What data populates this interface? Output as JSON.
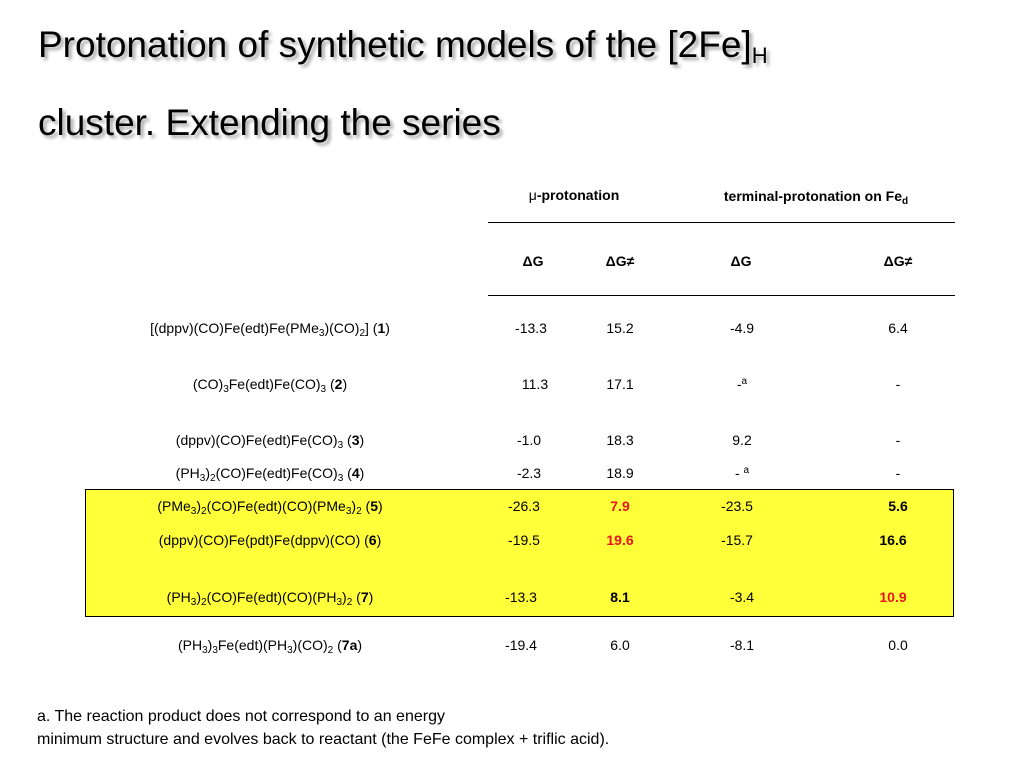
{
  "slide": {
    "title_line1": "Protonation of synthetic models of the [2Fe]",
    "title_sub": "H",
    "title_line2": "cluster. Extending the series"
  },
  "table": {
    "group_headers": {
      "mu_symbol": "μ",
      "mu_text": "-protonation",
      "terminal_text": "terminal-protonation on Fe",
      "terminal_sub": "d"
    },
    "sub_headers": [
      "ΔG",
      "ΔG≠",
      "ΔG",
      "ΔG≠"
    ],
    "rows": [
      {
        "compound": [
          {
            "t": "[(dppv)(CO)Fe(edt)Fe(PMe"
          },
          {
            "t": "3",
            "sub": true
          },
          {
            "t": ")(CO)"
          },
          {
            "t": "2",
            "sub": true
          },
          {
            "t": "]  ("
          },
          {
            "t": "1",
            "b": true
          },
          {
            "t": ")"
          }
        ],
        "values": [
          {
            "t": "-13.3"
          },
          {
            "t": "15.2"
          },
          {
            "t": "-4.9"
          },
          {
            "t": "6.4"
          }
        ]
      },
      {
        "compound": [
          {
            "t": "(CO)"
          },
          {
            "t": "3",
            "sub": true
          },
          {
            "t": "Fe(edt)Fe(CO)"
          },
          {
            "t": "3",
            "sub": true
          },
          {
            "t": " ("
          },
          {
            "t": "2",
            "b": true
          },
          {
            "t": ")"
          }
        ],
        "values": [
          {
            "t": "11.3"
          },
          {
            "t": "17.1"
          },
          {
            "t": "-"
          },
          {
            "t": "-"
          }
        ],
        "note": "a"
      },
      {
        "compound": [
          {
            "t": "(dppv)(CO)Fe(edt)Fe(CO)"
          },
          {
            "t": "3",
            "sub": true
          },
          {
            "t": " ("
          },
          {
            "t": "3",
            "b": true
          },
          {
            "t": ")"
          }
        ],
        "values": [
          {
            "t": "-1.0"
          },
          {
            "t": "18.3"
          },
          {
            "t": "9.2"
          },
          {
            "t": "-"
          }
        ]
      },
      {
        "compound": [
          {
            "t": "(PH"
          },
          {
            "t": "3",
            "sub": true
          },
          {
            "t": ")"
          },
          {
            "t": "2",
            "sub": true
          },
          {
            "t": "(CO)Fe(edt)Fe(CO)"
          },
          {
            "t": "3",
            "sub": true
          },
          {
            "t": "  ("
          },
          {
            "t": "4",
            "b": true
          },
          {
            "t": ")"
          }
        ],
        "values": [
          {
            "t": "-2.3"
          },
          {
            "t": "18.9"
          },
          {
            "t": "- "
          },
          {
            "t": "-"
          }
        ],
        "note": "a"
      },
      {
        "compound": [
          {
            "t": "(PMe"
          },
          {
            "t": "3",
            "sub": true
          },
          {
            "t": ")"
          },
          {
            "t": "2",
            "sub": true
          },
          {
            "t": "(CO)Fe(edt)(CO)(PMe"
          },
          {
            "t": "3",
            "sub": true
          },
          {
            "t": ")"
          },
          {
            "t": "2",
            "sub": true
          },
          {
            "t": " ("
          },
          {
            "t": "5",
            "b": true
          },
          {
            "t": ")"
          }
        ],
        "values": [
          {
            "t": "-26.3"
          },
          {
            "t": "7.9",
            "style": "red"
          },
          {
            "t": "-23.5"
          },
          {
            "t": "5.6",
            "style": "bold"
          }
        ]
      },
      {
        "compound": [
          {
            "t": "(dppv)(CO)Fe(pdt)Fe(dppv)(CO) ("
          },
          {
            "t": "6",
            "b": true
          },
          {
            "t": ")"
          }
        ],
        "values": [
          {
            "t": "-19.5"
          },
          {
            "t": "19.6",
            "style": "red"
          },
          {
            "t": "-15.7"
          },
          {
            "t": "16.6",
            "style": "bold"
          }
        ]
      },
      {
        "compound": [
          {
            "t": "(PH"
          },
          {
            "t": "3",
            "sub": true
          },
          {
            "t": ")"
          },
          {
            "t": "2",
            "sub": true
          },
          {
            "t": "(CO)Fe(edt)(CO)(PH"
          },
          {
            "t": "3",
            "sub": true
          },
          {
            "t": ")"
          },
          {
            "t": "2",
            "sub": true
          },
          {
            "t": " ("
          },
          {
            "t": "7",
            "b": true
          },
          {
            "t": ")"
          }
        ],
        "values": [
          {
            "t": "-13.3"
          },
          {
            "t": "8.1",
            "style": "bold"
          },
          {
            "t": "-3.4"
          },
          {
            "t": "10.9",
            "style": "red"
          }
        ]
      },
      {
        "compound": [
          {
            "t": "(PH"
          },
          {
            "t": "3",
            "sub": true
          },
          {
            "t": ")"
          },
          {
            "t": "3",
            "sub": true
          },
          {
            "t": "Fe(edt)(PH"
          },
          {
            "t": "3",
            "sub": true
          },
          {
            "t": ")(CO)"
          },
          {
            "t": "2",
            "sub": true
          },
          {
            "t": " ("
          },
          {
            "t": "7a",
            "b": true
          },
          {
            "t": ")"
          }
        ],
        "values": [
          {
            "t": "-19.4"
          },
          {
            "t": "6.0"
          },
          {
            "t": "-8.1"
          },
          {
            "t": "0.0"
          }
        ]
      }
    ]
  },
  "footnote": {
    "line1": "a. The  reaction product does not correspond to an energy",
    "line2": " minimum structure and evolves back to reactant (the FeFe complex + triflic acid)."
  },
  "colors": {
    "highlight": "#ffff3a",
    "emphasis": "#e8141c"
  }
}
